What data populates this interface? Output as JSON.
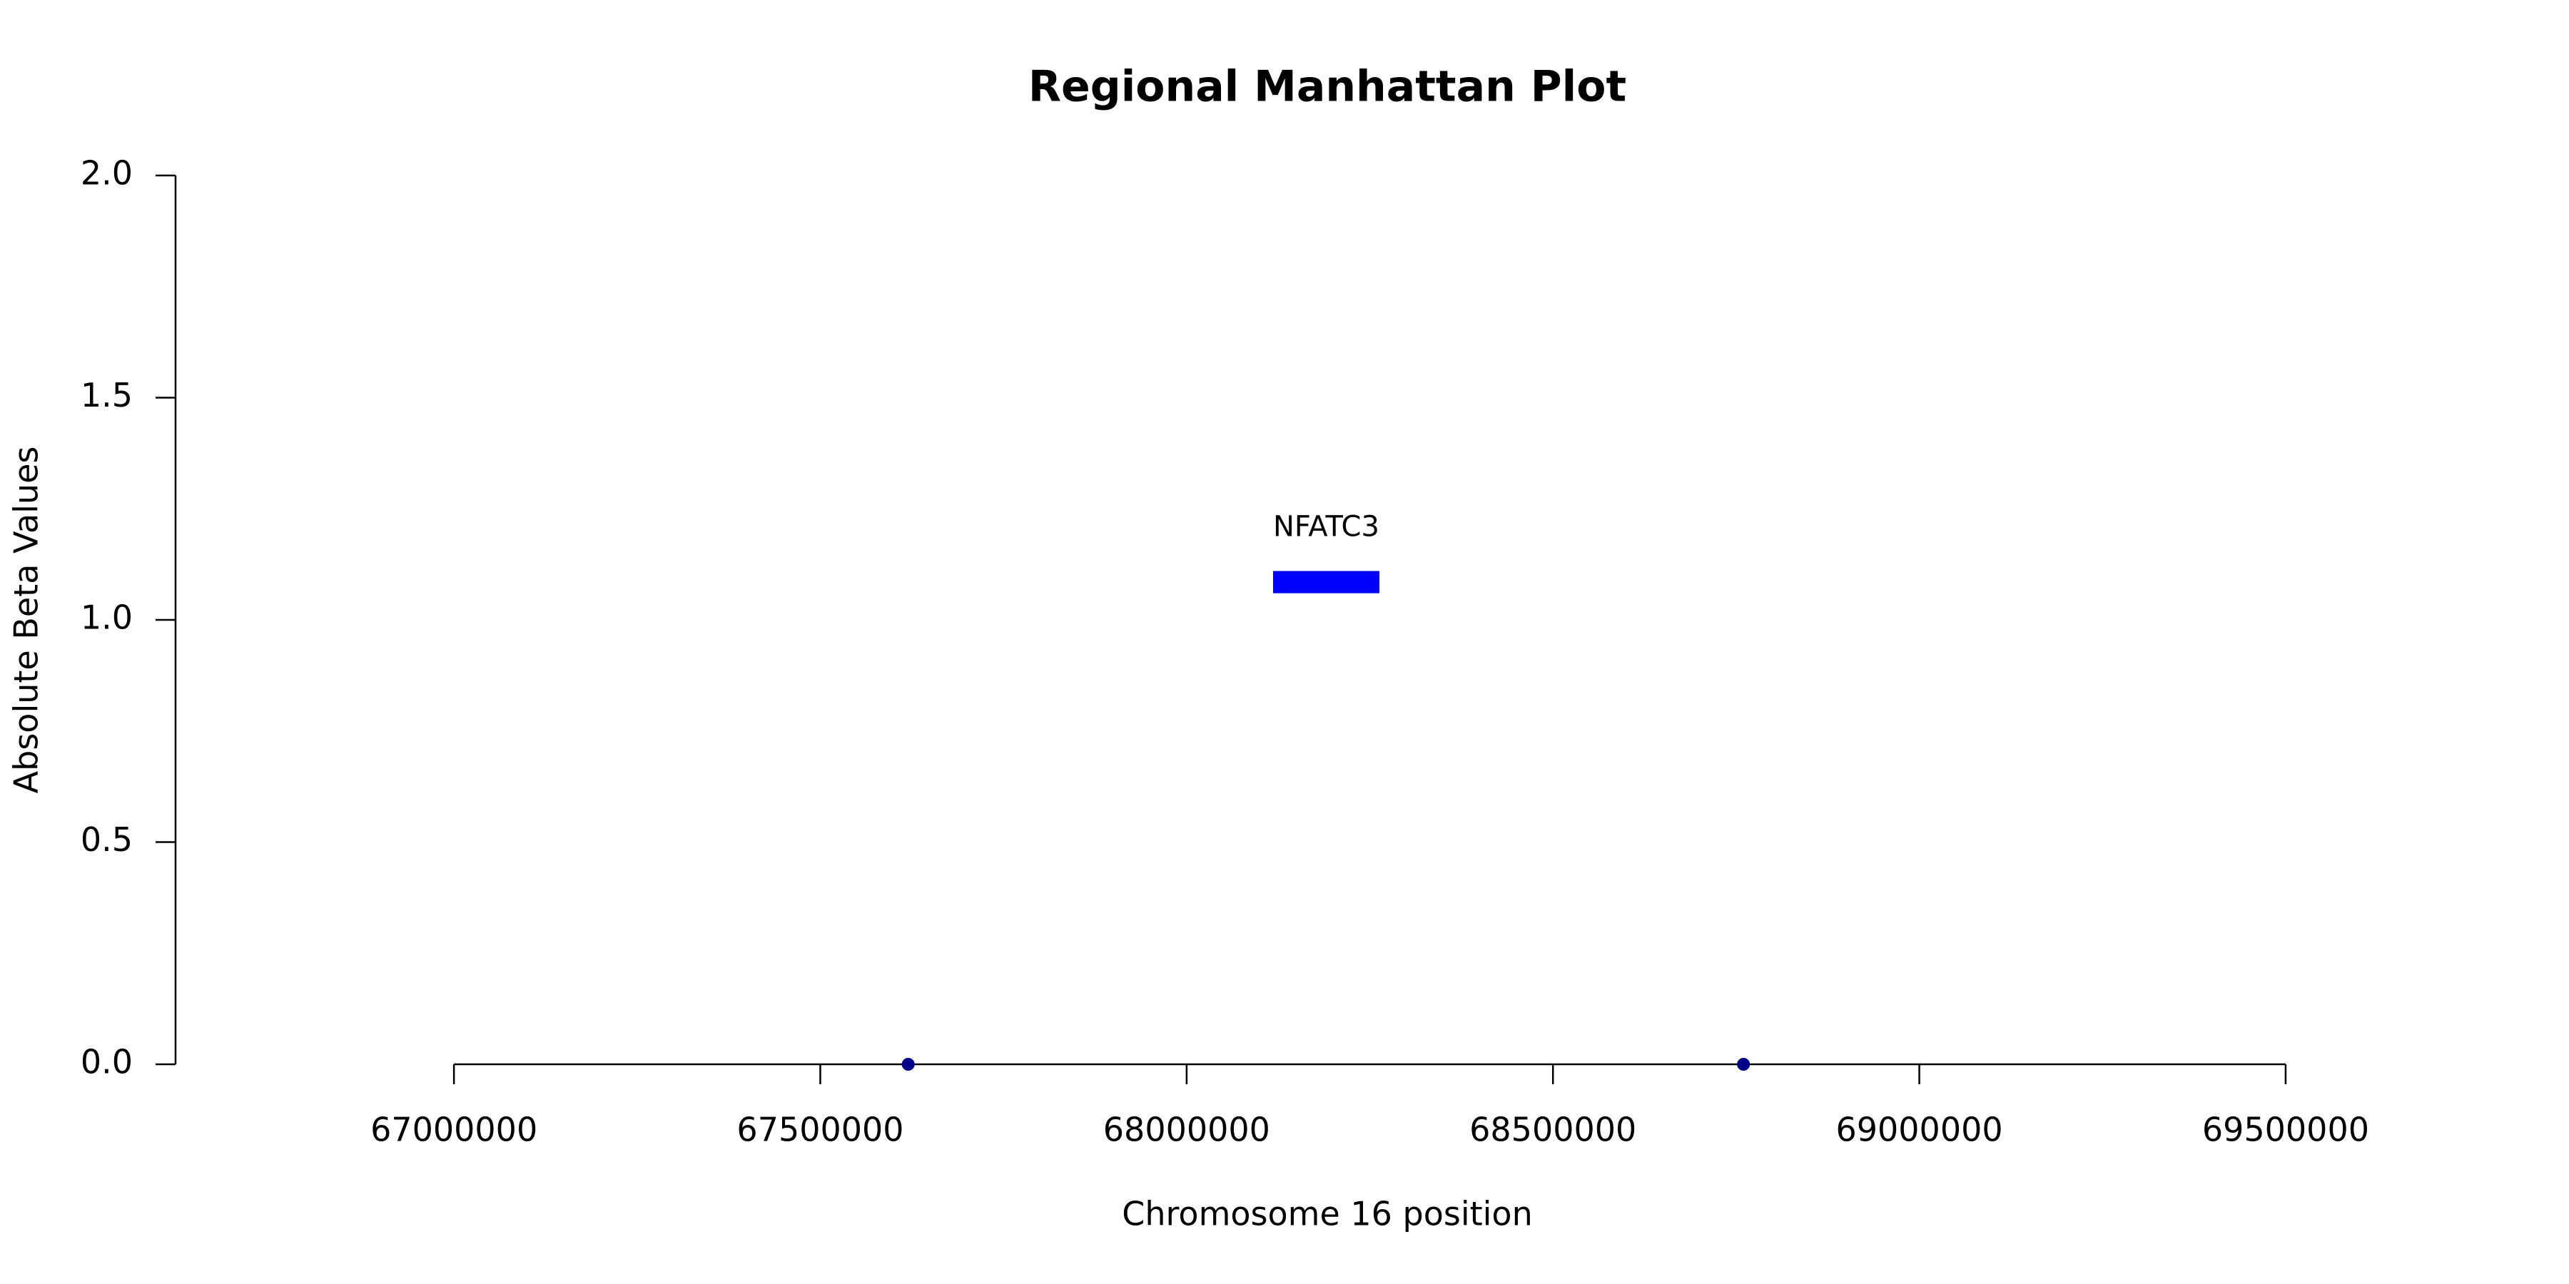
{
  "chart_data": {
    "type": "scatter",
    "title": "Regional Manhattan Plot",
    "x_label": "Chromosome 16 position",
    "y_label": "Absolute Beta Values",
    "series": [
      {
        "color": "#00008b",
        "x": [
          67620000,
          68760000
        ],
        "values": [
          0,
          0
        ]
      }
    ],
    "gene": {
      "label": "NFATC3",
      "start": 68118000,
      "end": 68263000,
      "ymin": 1.06,
      "ymax": 1.11,
      "color": "#0000ff"
    },
    "xlim": [
      66620000,
      69765000
    ],
    "ylim": [
      0,
      2
    ],
    "xticks": [
      67000000,
      67500000,
      68000000,
      68500000,
      69000000,
      69500000
    ],
    "yticks": [
      {
        "value": 0,
        "label": "0.0"
      },
      0.5,
      {
        "value": 1,
        "label": "1.0"
      },
      1.5,
      {
        "value": 2,
        "label": "2.0"
      }
    ],
    "grid": false
  }
}
